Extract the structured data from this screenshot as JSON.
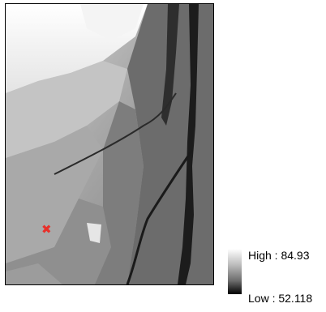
{
  "legend": {
    "high_label": "High : 84.93",
    "low_label": "Low : 52.118",
    "high_value": 84.93,
    "low_value": 52.118,
    "ramp_colors": [
      "#ffffff",
      "#000000"
    ]
  },
  "marker": {
    "symbol": "✖",
    "color": "#e8302a"
  }
}
